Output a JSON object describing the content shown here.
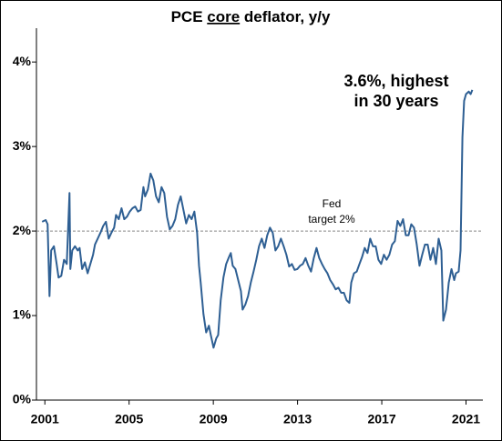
{
  "chart_data": {
    "type": "line",
    "title": [
      "PCE ",
      "core",
      " deflator, y/y"
    ],
    "annotations": [
      {
        "lines": [
          "3.6%, highest",
          "in 30 years"
        ]
      },
      {
        "lines": [
          "Fed",
          "target 2%"
        ]
      }
    ],
    "reference_line": 2,
    "xlim": [
      2000.6,
      2021.8
    ],
    "xticks": [
      2001,
      2005,
      2009,
      2013,
      2017,
      2021
    ],
    "ylim": [
      0,
      4.4
    ],
    "yticks": [
      {
        "value": 0,
        "label": "0%"
      },
      {
        "value": 1,
        "label": "1%"
      },
      {
        "value": 2,
        "label": "2%"
      },
      {
        "value": 3,
        "label": "3%"
      },
      {
        "value": 4,
        "label": "4%"
      }
    ],
    "series": [
      {
        "color": "#2e5f93",
        "x": [
          2000.87,
          2001.04,
          2001.13,
          2001.22,
          2001.3,
          2001.43,
          2001.56,
          2001.65,
          2001.78,
          2001.91,
          2002.04,
          2002.17,
          2002.21,
          2002.3,
          2002.43,
          2002.56,
          2002.65,
          2002.77,
          2002.9,
          2003.03,
          2003.16,
          2003.29,
          2003.38,
          2003.51,
          2003.64,
          2003.77,
          2003.9,
          2004.03,
          2004.16,
          2004.29,
          2004.38,
          2004.51,
          2004.64,
          2004.77,
          2004.9,
          2005.03,
          2005.16,
          2005.29,
          2005.42,
          2005.55,
          2005.68,
          2005.76,
          2005.89,
          2006.02,
          2006.15,
          2006.28,
          2006.41,
          2006.54,
          2006.67,
          2006.8,
          2006.93,
          2007.06,
          2007.19,
          2007.32,
          2007.45,
          2007.58,
          2007.71,
          2007.84,
          2007.97,
          2008.1,
          2008.23,
          2008.32,
          2008.4,
          2008.53,
          2008.66,
          2008.79,
          2008.88,
          2009.01,
          2009.14,
          2009.23,
          2009.35,
          2009.48,
          2009.61,
          2009.74,
          2009.83,
          2009.92,
          2010.05,
          2010.18,
          2010.31,
          2010.39,
          2010.52,
          2010.65,
          2010.78,
          2010.91,
          2011.04,
          2011.17,
          2011.3,
          2011.43,
          2011.56,
          2011.69,
          2011.82,
          2011.95,
          2012.08,
          2012.21,
          2012.34,
          2012.47,
          2012.6,
          2012.73,
          2012.86,
          2012.99,
          2013.12,
          2013.25,
          2013.38,
          2013.51,
          2013.64,
          2013.77,
          2013.9,
          2014.03,
          2014.16,
          2014.29,
          2014.42,
          2014.55,
          2014.68,
          2014.81,
          2014.94,
          2015.07,
          2015.2,
          2015.33,
          2015.46,
          2015.55,
          2015.68,
          2015.81,
          2015.94,
          2016.06,
          2016.19,
          2016.32,
          2016.45,
          2016.58,
          2016.71,
          2016.84,
          2016.97,
          2017.1,
          2017.23,
          2017.36,
          2017.49,
          2017.62,
          2017.75,
          2017.88,
          2018.01,
          2018.14,
          2018.27,
          2018.4,
          2018.53,
          2018.66,
          2018.79,
          2018.92,
          2019.05,
          2019.18,
          2019.31,
          2019.44,
          2019.57,
          2019.7,
          2019.83,
          2019.92,
          2020.05,
          2020.18,
          2020.31,
          2020.44,
          2020.52,
          2020.65,
          2020.74,
          2020.83,
          2020.91,
          2021.0,
          2021.13,
          2021.22,
          2021.3
        ],
        "values": [
          2.11,
          2.13,
          2.08,
          1.23,
          1.77,
          1.82,
          1.61,
          1.45,
          1.47,
          1.66,
          1.61,
          2.45,
          1.55,
          1.77,
          1.82,
          1.77,
          1.8,
          1.55,
          1.63,
          1.5,
          1.61,
          1.72,
          1.84,
          1.91,
          1.98,
          2.06,
          2.11,
          1.91,
          1.98,
          2.04,
          2.19,
          2.14,
          2.27,
          2.14,
          2.17,
          2.23,
          2.27,
          2.29,
          2.23,
          2.25,
          2.52,
          2.41,
          2.49,
          2.68,
          2.6,
          2.41,
          2.34,
          2.52,
          2.45,
          2.17,
          2.02,
          2.06,
          2.14,
          2.31,
          2.41,
          2.25,
          2.09,
          2.19,
          2.14,
          2.23,
          1.98,
          1.59,
          1.39,
          1.02,
          0.8,
          0.88,
          0.77,
          0.62,
          0.73,
          0.77,
          1.18,
          1.45,
          1.61,
          1.69,
          1.74,
          1.59,
          1.55,
          1.42,
          1.29,
          1.07,
          1.13,
          1.23,
          1.39,
          1.52,
          1.66,
          1.82,
          1.91,
          1.8,
          1.95,
          2.04,
          1.98,
          1.77,
          1.82,
          1.91,
          1.82,
          1.72,
          1.58,
          1.61,
          1.54,
          1.55,
          1.59,
          1.61,
          1.68,
          1.59,
          1.52,
          1.68,
          1.8,
          1.68,
          1.61,
          1.55,
          1.5,
          1.42,
          1.37,
          1.31,
          1.33,
          1.27,
          1.27,
          1.18,
          1.15,
          1.39,
          1.5,
          1.52,
          1.61,
          1.69,
          1.8,
          1.74,
          1.91,
          1.82,
          1.82,
          1.66,
          1.61,
          1.72,
          1.66,
          1.72,
          1.84,
          1.88,
          2.12,
          2.06,
          2.14,
          1.95,
          1.95,
          2.08,
          2.04,
          1.84,
          1.59,
          1.72,
          1.84,
          1.84,
          1.66,
          1.8,
          1.61,
          1.91,
          1.77,
          0.94,
          1.07,
          1.39,
          1.55,
          1.42,
          1.5,
          1.52,
          1.77,
          3.11,
          3.54,
          3.62,
          3.65,
          3.62,
          3.67
        ]
      }
    ]
  }
}
